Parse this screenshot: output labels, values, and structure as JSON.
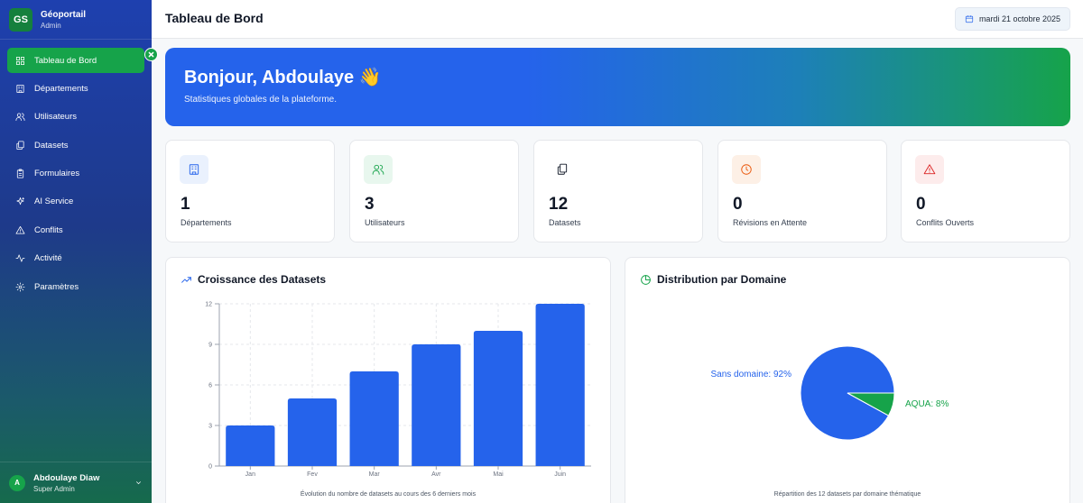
{
  "brand": {
    "logo": "GS",
    "name": "Géoportail",
    "role": "Admin"
  },
  "sidebar": {
    "items": [
      {
        "label": "Tableau de Bord",
        "icon": "grid-icon",
        "active": true
      },
      {
        "label": "Départements",
        "icon": "building-icon"
      },
      {
        "label": "Utilisateurs",
        "icon": "users-icon"
      },
      {
        "label": "Datasets",
        "icon": "files-icon"
      },
      {
        "label": "Formulaires",
        "icon": "clipboard-icon"
      },
      {
        "label": "AI Service",
        "icon": "sparkles-icon"
      },
      {
        "label": "Conflits",
        "icon": "warning-icon"
      },
      {
        "label": "Activité",
        "icon": "activity-icon"
      },
      {
        "label": "Paramètres",
        "icon": "gear-icon"
      }
    ]
  },
  "user": {
    "initial": "A",
    "name": "Abdoulaye Diaw",
    "role": "Super Admin"
  },
  "header": {
    "title": "Tableau de Bord",
    "date": "mardi 21 octobre 2025"
  },
  "hero": {
    "title": "Bonjour, Abdoulaye 👋",
    "subtitle": "Statistiques globales de la plateforme."
  },
  "stats": [
    {
      "value": "1",
      "label": "Départements",
      "icon": "building-icon",
      "color": "#2563eb",
      "bg": "#eaf1fd"
    },
    {
      "value": "3",
      "label": "Utilisateurs",
      "icon": "users-icon",
      "color": "#16a34a",
      "bg": "#e8f7ee"
    },
    {
      "value": "12",
      "label": "Datasets",
      "icon": "files-icon",
      "color": "#111827",
      "bg": "#ffffff"
    },
    {
      "value": "0",
      "label": "Révisions en Attente",
      "icon": "clock-icon",
      "color": "#ea580c",
      "bg": "#fdf0e6"
    },
    {
      "value": "0",
      "label": "Conflits Ouverts",
      "icon": "warning-icon",
      "color": "#dc2626",
      "bg": "#fdecec"
    }
  ],
  "growth_panel": {
    "title": "Croissance des Datasets",
    "caption": "Évolution du nombre de datasets au cours des 6 derniers mois"
  },
  "domain_panel": {
    "title": "Distribution par Domaine",
    "caption": "Répartition des 12 datasets par domaine thématique"
  },
  "chart_data": [
    {
      "type": "bar",
      "categories": [
        "Jan",
        "Fev",
        "Mar",
        "Avr",
        "Mai",
        "Juin"
      ],
      "values": [
        3,
        5,
        7,
        9,
        10,
        12
      ],
      "ylim": [
        0,
        12
      ],
      "yticks": [
        0,
        3,
        6,
        9,
        12
      ],
      "color": "#2563eb",
      "grid": true
    },
    {
      "type": "pie",
      "slices": [
        {
          "label": "Sans domaine: 92%",
          "value": 92,
          "color": "#2563eb"
        },
        {
          "label": "AQUA: 8%",
          "value": 8,
          "color": "#16a34a"
        }
      ]
    }
  ]
}
